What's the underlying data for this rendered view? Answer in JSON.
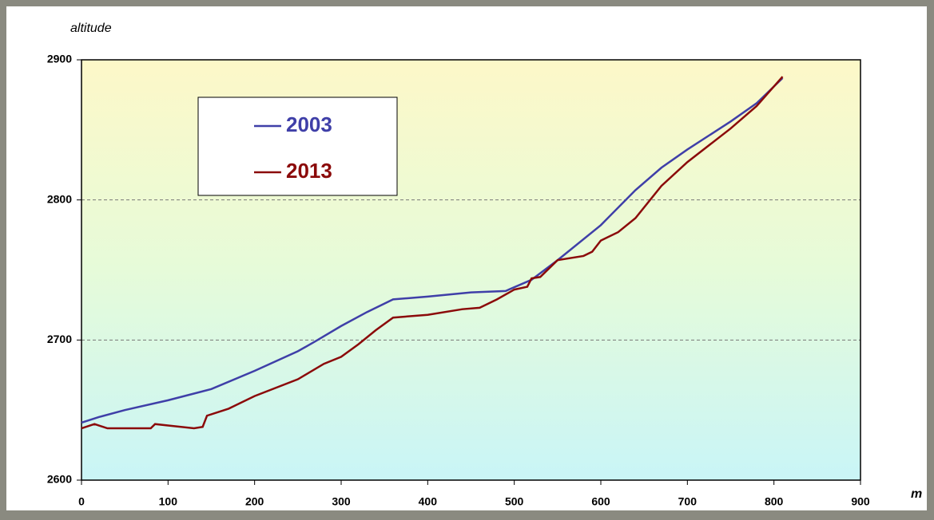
{
  "chart_data": {
    "type": "line",
    "y_axis_label": "altitude",
    "x_axis_label": "m",
    "xlim": [
      0,
      900
    ],
    "xticks": [
      0,
      100,
      200,
      300,
      400,
      500,
      600,
      700,
      800,
      900
    ],
    "ylim": [
      2600,
      2900
    ],
    "yticks": [
      2600,
      2700,
      2800,
      2900
    ],
    "grid": true,
    "legend": "upper left",
    "series": [
      {
        "name": "2003",
        "color": "#3f3fa8",
        "x": [
          0,
          20,
          50,
          100,
          150,
          200,
          250,
          270,
          300,
          330,
          360,
          400,
          450,
          490,
          520,
          550,
          600,
          640,
          670,
          700,
          750,
          780,
          810
        ],
        "values": [
          2641,
          2645,
          2650,
          2657,
          2665,
          2678,
          2692,
          2699,
          2710,
          2720,
          2729,
          2731,
          2734,
          2735,
          2743,
          2757,
          2782,
          2807,
          2823,
          2836,
          2856,
          2869,
          2887
        ]
      },
      {
        "name": "2013",
        "color": "#8b0a0a",
        "x": [
          0,
          15,
          30,
          50,
          80,
          85,
          100,
          130,
          140,
          145,
          170,
          200,
          250,
          280,
          300,
          320,
          340,
          360,
          400,
          440,
          460,
          480,
          500,
          515,
          520,
          530,
          550,
          580,
          590,
          600,
          620,
          640,
          670,
          700,
          750,
          780,
          810
        ],
        "values": [
          2637,
          2640,
          2637,
          2637,
          2637,
          2640,
          2639,
          2637,
          2638,
          2646,
          2651,
          2660,
          2672,
          2683,
          2688,
          2697,
          2707,
          2716,
          2718,
          2722,
          2723,
          2729,
          2736,
          2738,
          2744,
          2745,
          2757,
          2760,
          2763,
          2771,
          2777,
          2787,
          2810,
          2827,
          2851,
          2867,
          2888
        ]
      }
    ]
  }
}
